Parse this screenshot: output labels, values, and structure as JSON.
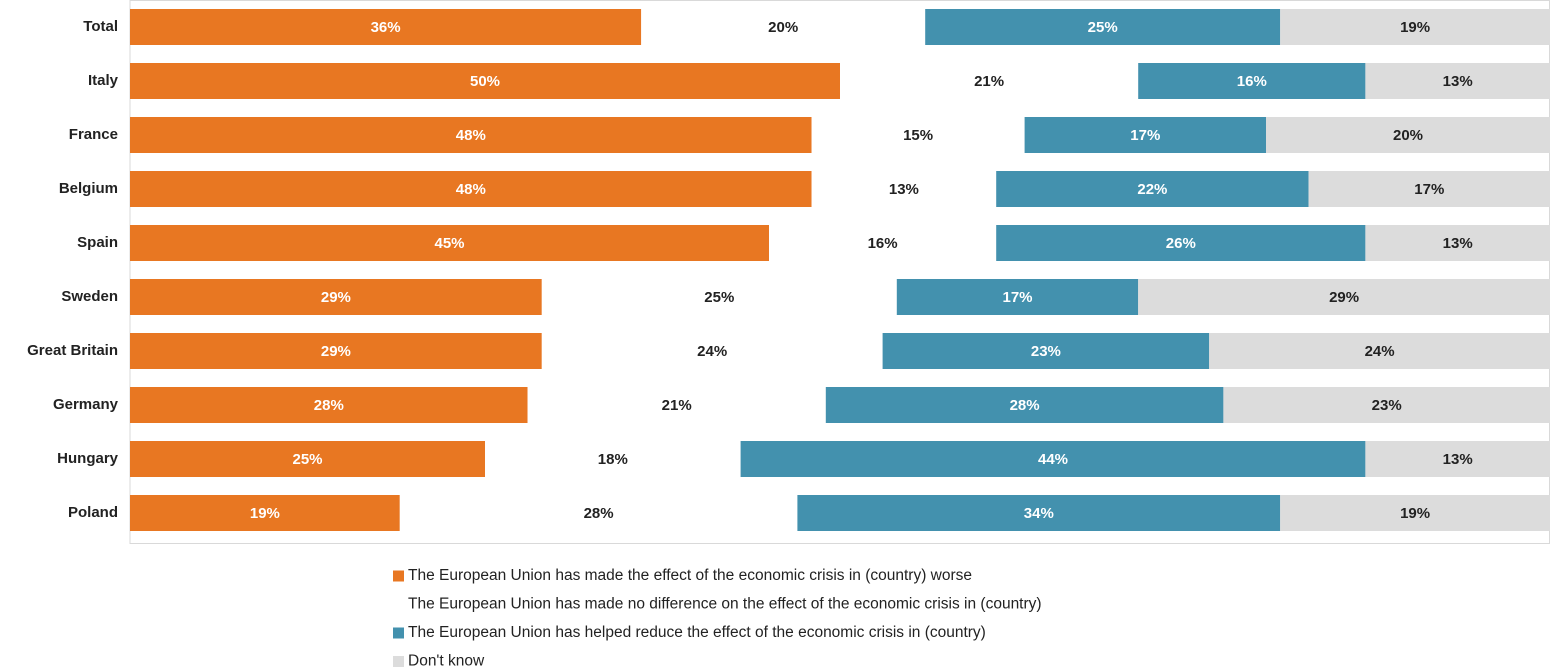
{
  "chart_data": {
    "type": "stacked_barh",
    "categories": [
      "Total",
      "Italy",
      "France",
      "Belgium",
      "Spain",
      "Sweden",
      "Great Britain",
      "Germany",
      "Hungary",
      "Poland"
    ],
    "series": [
      {
        "name": "The European Union has made the effect of the economic crisis in (country) worse",
        "color": "#e87722",
        "values": [
          36,
          50,
          48,
          48,
          45,
          29,
          29,
          28,
          25,
          19
        ],
        "value_labels": [
          "36%",
          "50%",
          "48%",
          "48%",
          "45%",
          "29%",
          "29%",
          "28%",
          "25%",
          "19%"
        ]
      },
      {
        "name": "The European Union has made no difference on the effect of the economic crisis in (country)",
        "color": "#ffffff",
        "values": [
          20,
          21,
          15,
          13,
          16,
          25,
          24,
          21,
          18,
          28
        ],
        "value_labels": [
          "20%",
          "21%",
          "15%",
          "13%",
          "16%",
          "25%",
          "24%",
          "21%",
          "18%",
          "28%"
        ]
      },
      {
        "name": "The European Union has helped reduce the effect of the economic crisis in (country)",
        "color": "#4391ae",
        "values": [
          25,
          16,
          17,
          22,
          26,
          17,
          23,
          28,
          44,
          34
        ],
        "value_labels": [
          "25%",
          "16%",
          "17%",
          "22%",
          "26%",
          "17%",
          "23%",
          "28%",
          "44%",
          "34%"
        ]
      },
      {
        "name": "Don't know",
        "color": "#dcdcdc",
        "values": [
          19,
          13,
          20,
          17,
          13,
          29,
          24,
          23,
          13,
          19
        ],
        "value_labels": [
          "19%",
          "13%",
          "20%",
          "17%",
          "13%",
          "29%",
          "24%",
          "23%",
          "13%",
          "19%"
        ]
      }
    ],
    "xlim": [
      0,
      100
    ]
  }
}
